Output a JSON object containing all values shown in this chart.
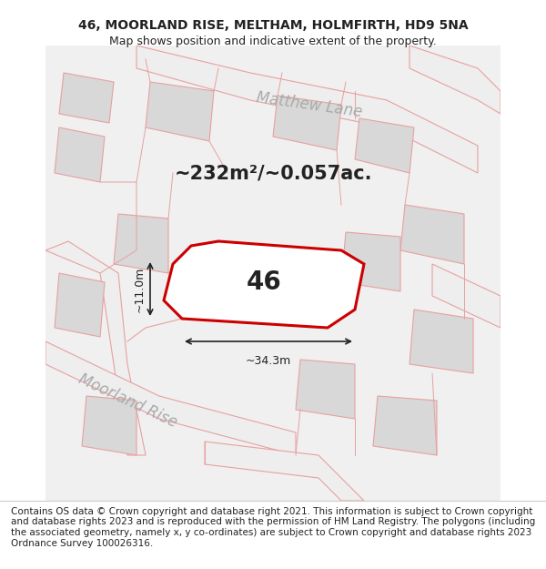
{
  "title_line1": "46, MOORLAND RISE, MELTHAM, HOLMFIRTH, HD9 5NA",
  "title_line2": "Map shows position and indicative extent of the property.",
  "area_text": "~232m²/~0.057ac.",
  "plot_number": "46",
  "dim_width": "~34.3m",
  "dim_height": "~11.0m",
  "street_label1": "Matthew Lane",
  "street_label2": "Moorland Rise",
  "footer_text": "Contains OS data © Crown copyright and database right 2021. This information is subject to Crown copyright and database rights 2023 and is reproduced with the permission of HM Land Registry. The polygons (including the associated geometry, namely x, y co-ordinates) are subject to Crown copyright and database rights 2023 Ordnance Survey 100026316.",
  "bg_color": "#f5f5f5",
  "map_bg": "#f0f0f0",
  "road_fill": "#e8e8e8",
  "plot_line_color": "#cc0000",
  "plot_fill": "#ffffff",
  "road_line_color": "#e8a0a0",
  "building_fill": "#d8d8d8",
  "building_line": "#e8a0a0",
  "title_fontsize": 10,
  "subtitle_fontsize": 9,
  "area_fontsize": 16,
  "plot_label_fontsize": 22,
  "street_fontsize": 13,
  "footer_fontsize": 7.5,
  "map_region": [
    0,
    0.12,
    1,
    0.88
  ]
}
